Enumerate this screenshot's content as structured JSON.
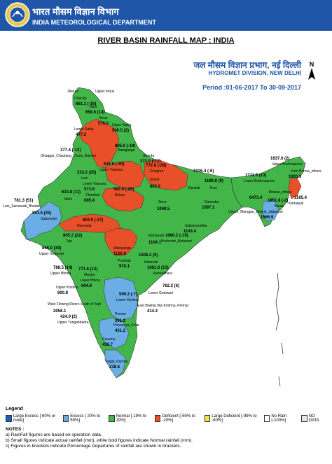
{
  "header": {
    "hindi": "भारत मौसम विज्ञान विभाग",
    "department": "INDIA METEOROLOGICAL DEPARTMENT"
  },
  "title": "RIVER BASIN RAINFALL MAP : INDIA",
  "division": {
    "hindi": "जल मौसम विज्ञान प्रभाग, नई दिल्ली",
    "name": "HYDROMET DIVISION, NEW DELHI",
    "period": "Period :01-06-2017 To 30-09-2017"
  },
  "colors": {
    "large_excess": "#1f5fb8",
    "excess": "#6baee6",
    "normal": "#43b649",
    "deficient": "#e8502a",
    "large_deficient": "#f2e24a",
    "no_rain": "#ffffff",
    "no_data": "#e6e6e6"
  },
  "legend": {
    "title": "Legend",
    "items": [
      {
        "label": "Large Excess [ 60% or more]",
        "color": "#1f5fb8"
      },
      {
        "label": "Excess [ 20% to 59%]",
        "color": "#6baee6"
      },
      {
        "label": "Normal [-19% to 19%]",
        "color": "#43b649"
      },
      {
        "label": "Deficient [-59% to -20%]",
        "color": "#e8502a"
      },
      {
        "label": "Large Deficient [-99% to -60%]",
        "color": "#f2e24a"
      },
      {
        "label": "No Rain [-100%]",
        "color": "#ffffff"
      },
      {
        "label": "NO DATA",
        "color": "#e6e6e6"
      }
    ]
  },
  "notes": {
    "title": "NOTES :",
    "lines": [
      "a) RainFall figures are based on operation data.",
      "b) Small figures indicate actual rainfall (mm), while bold figures indicate Normal rainfall (mm).",
      "c) Figures in brackets indicate Percentage Departures of rainfall are shown in brackets."
    ]
  },
  "map_labels": [
    {
      "name": "Jhelum",
      "value": ""
    },
    {
      "name": "Upper Indus",
      "value": ""
    },
    {
      "name": "Chenab",
      "value": "661.1 (-16)"
    },
    {
      "name": "Ravi",
      "value": "658.6 (14)"
    },
    {
      "name": "Beas",
      "value": "576.0"
    },
    {
      "name": "Lower Satluj",
      "value": "477.3"
    },
    {
      "name": "Upper Satluj",
      "value": "560.5 (2)"
    },
    {
      "name": "Ramganga",
      "value": "895.0 (-19)"
    },
    {
      "name": "Ghaggar_Chautang_Churu_Barmer",
      "value": "377.4 (-12)"
    },
    {
      "name": "Upper Yamuna",
      "value": "516.8 (-30)"
    },
    {
      "name": "Sharda",
      "value": "372.0 (-12)"
    },
    {
      "name": "Luni",
      "value": "333.2 (26)"
    },
    {
      "name": "Lower Yamuna",
      "value": "573.9"
    },
    {
      "name": "Ghaghra",
      "value": "772.8 (-29)"
    },
    {
      "name": "Gomti",
      "value": "883.2"
    },
    {
      "name": "Gandak",
      "value": "1026.4 (-6)"
    },
    {
      "name": "Upper Brahmaputra",
      "value": "1637.6 (2)"
    },
    {
      "name": "Lower Brahmaputra",
      "value": "1711.3 (13)"
    },
    {
      "name": "Mahi",
      "value": "610.8 (11)"
    },
    {
      "name": "Chambal",
      "value": "685.4"
    },
    {
      "name": "Betwa",
      "value": "562.6 (-35)"
    },
    {
      "name": "Sone",
      "value": "1048.5"
    },
    {
      "name": "Kosi",
      "value": "1199.8 (9)"
    },
    {
      "name": "Barak",
      "value": "1851.8 (-2)"
    },
    {
      "name": "Luni_Saraswati_Bhadar",
      "value": "781.3 (51)"
    },
    {
      "name": "Sabarmati",
      "value": "891.5 (25)"
    },
    {
      "name": "Narmada",
      "value": "804.9 (-27)"
    },
    {
      "name": "Tapi",
      "value": "805.2 (22)"
    },
    {
      "name": "Damodar",
      "value": "1087.2"
    },
    {
      "name": "Brahmani_Baitarani",
      "value": "1066.2 (-19)"
    },
    {
      "name": "Mahanadi",
      "value": "1104.1"
    },
    {
      "name": "Subarnarekha",
      "value": "1143.4"
    },
    {
      "name": "Upper Godavari",
      "value": "846.0 (39)"
    },
    {
      "name": "Wainganga",
      "value": "1126.9"
    },
    {
      "name": "Pranhita",
      "value": "915.1"
    },
    {
      "name": "Indravati",
      "value": "1206.2 (5)"
    },
    {
      "name": "Upper Bhima",
      "value": "788.5 (14)"
    },
    {
      "name": "Manjra",
      "value": "771.6 (12)"
    },
    {
      "name": "Lower Bhima",
      "value": "604.8"
    },
    {
      "name": "Vamsadhara",
      "value": "1061.6 (13)"
    },
    {
      "name": "Upper Krishna",
      "value": "800.8"
    },
    {
      "name": "Lower Godavari",
      "value": "762.2 (6)"
    },
    {
      "name": "Lower Krishna",
      "value": "599.2 (-7)"
    },
    {
      "name": "West Flowing Rivers South of Tapi",
      "value": "2058.1"
    },
    {
      "name": "Upper Tungabhadra",
      "value": "424.0 (2)"
    },
    {
      "name": "Penner",
      "value": "391.3"
    },
    {
      "name": "East flowing btw Krishna_Pennar",
      "value": "414.3"
    },
    {
      "name": "Cauvery",
      "value": "456.7"
    },
    {
      "name": "Ponnaiyar_Palar",
      "value": "431.2"
    },
    {
      "name": "Vaigai_Pamba",
      "value": "218.6"
    },
    {
      "name": "Indo Burma_others",
      "value": "1600.9"
    },
    {
      "name": "Bhutan_others",
      "value": "6473.4"
    },
    {
      "name": "Cooch_Mangpur_Dharla_Jalpaguri",
      "value": "1566.9"
    },
    {
      "name": "Karnapuli",
      "value": "1165.4"
    }
  ]
}
